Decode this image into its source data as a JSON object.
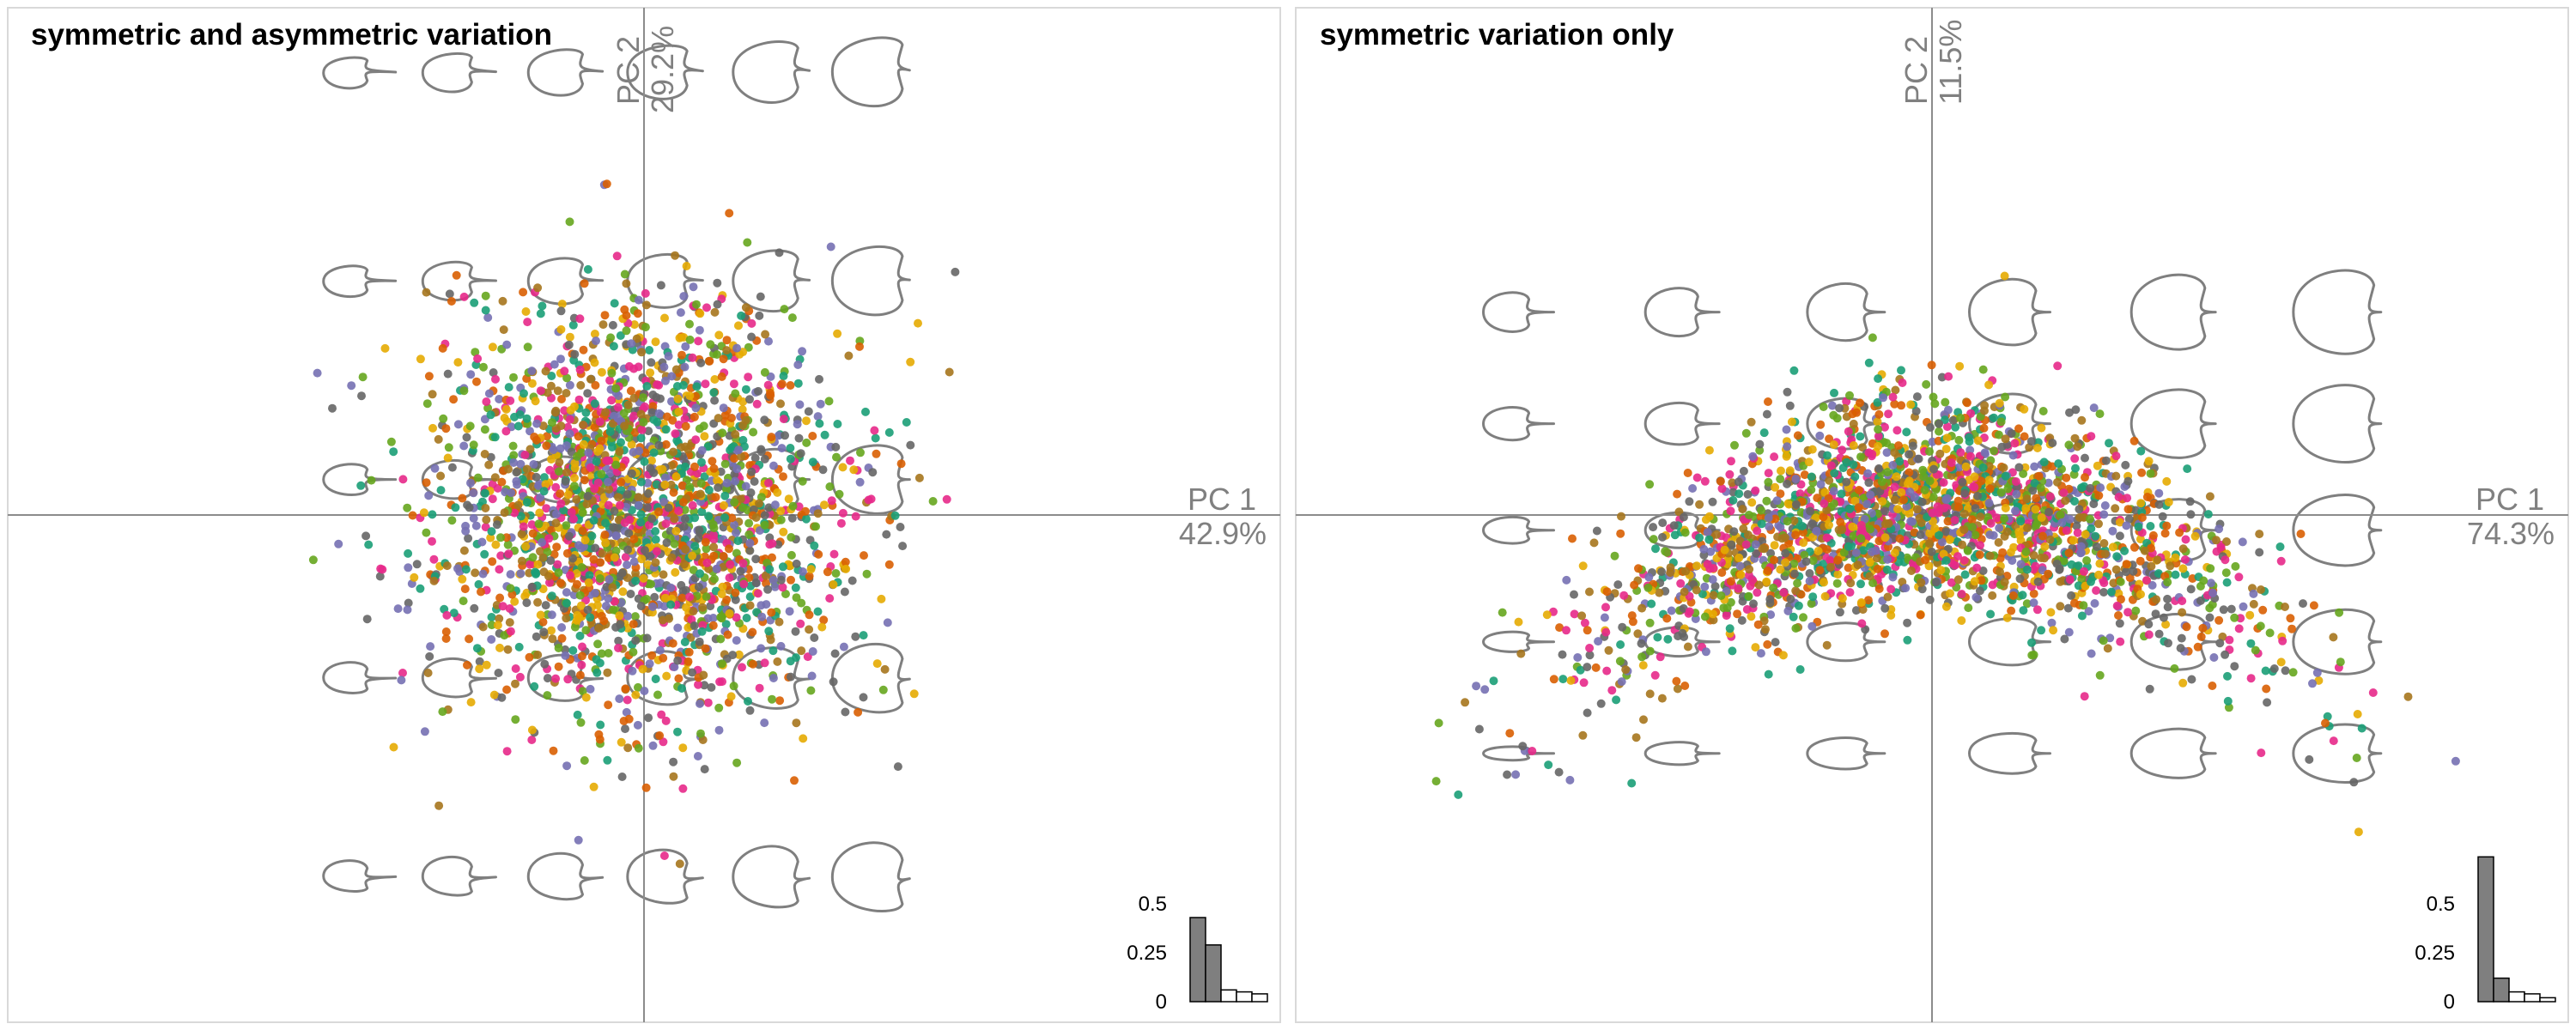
{
  "palette": [
    "#1b9e77",
    "#d95f02",
    "#7570b3",
    "#e7298a",
    "#66a61e",
    "#e6ab02",
    "#a6761d",
    "#666666"
  ],
  "chart_data": [
    {
      "type": "scatter",
      "title": "symmetric and asymmetric variation",
      "xaxis": {
        "name": "PC 1",
        "percent": "42.9%"
      },
      "yaxis": {
        "name": "PC 2",
        "percent": "29.2%"
      },
      "xlim": [
        -1,
        1
      ],
      "ylim": [
        -1,
        1
      ],
      "grid": false,
      "shape_grid": {
        "cols": [
          -0.47,
          -0.31,
          -0.14,
          0.02,
          0.19,
          0.35
        ],
        "rows": [
          0.87,
          0.46,
          0.07,
          -0.32,
          -0.71
        ]
      },
      "cloud": {
        "center": [
          -0.01,
          0.0
        ],
        "spread": [
          0.16,
          0.2
        ],
        "n_points": 2400
      },
      "scree": {
        "ticks": [
          "0.5",
          "0.25",
          "0"
        ],
        "values": [
          0.43,
          0.29,
          0.06,
          0.05,
          0.04
        ]
      }
    },
    {
      "type": "scatter",
      "title": "symmetric variation only",
      "xaxis": {
        "name": "PC 1",
        "percent": "74.3%"
      },
      "yaxis": {
        "name": "PC 2",
        "percent": "11.5%"
      },
      "xlim": [
        -1,
        1
      ],
      "ylim": [
        -1,
        1
      ],
      "grid": false,
      "shape_grid": {
        "cols": [
          -0.67,
          -0.41,
          -0.15,
          0.11,
          0.37,
          0.63
        ],
        "rows": [
          0.4,
          0.18,
          -0.03,
          -0.25,
          -0.47
        ]
      },
      "cloud": {
        "center": [
          -0.01,
          0.02
        ],
        "spread": [
          0.25,
          0.1
        ],
        "n_points": 2400
      },
      "scree": {
        "ticks": [
          "0.5",
          "0.25",
          "0"
        ],
        "values": [
          0.74,
          0.12,
          0.05,
          0.04,
          0.02
        ]
      }
    }
  ]
}
